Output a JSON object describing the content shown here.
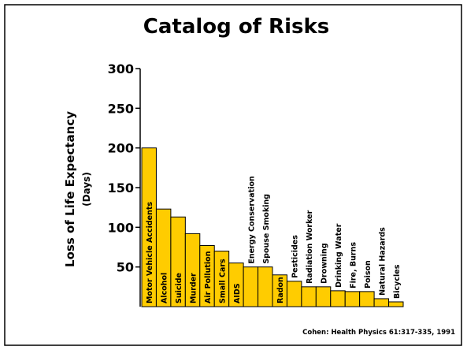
{
  "chart_data": {
    "type": "bar",
    "title": "Catalog of Risks",
    "ylabel": "Loss of Life Expectancy",
    "ylabel_unit": "(Days)",
    "source": "Cohen: Health Physics 61:317-335, 1991",
    "categories": [
      "Motor Vehicle Accidents",
      "Alcohol",
      "Suicide",
      "Murder",
      "Air Pollution",
      "Small Cars",
      "AIDS",
      "Energy Conservation",
      "Spouse Smoking",
      "Radon",
      "Pesticides",
      "Radiation Worker",
      "Drowning",
      "Drinking Water",
      "Fire, Burns",
      "Poison",
      "Natural Hazards",
      "Bicycles"
    ],
    "values": [
      200,
      123,
      113,
      92,
      77,
      70,
      55,
      50,
      50,
      40,
      32,
      25,
      25,
      20,
      19,
      19,
      10,
      6
    ],
    "color": "#ffcc00",
    "ylim": [
      0,
      300
    ],
    "yticks": [
      50,
      100,
      150,
      200,
      250,
      300
    ]
  }
}
